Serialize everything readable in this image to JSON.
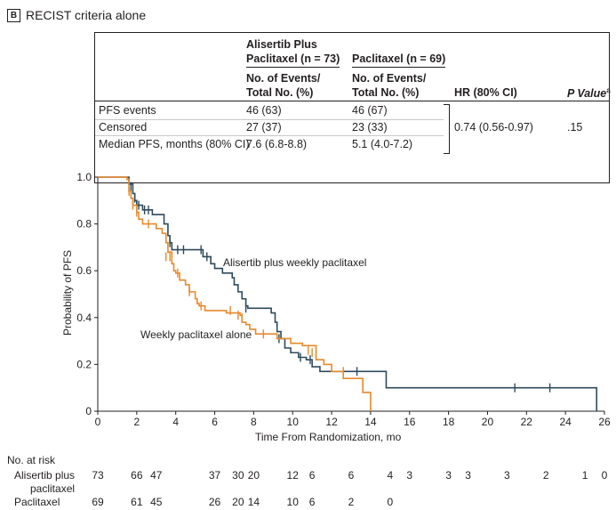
{
  "panel": {
    "letter": "B",
    "title": "RECIST criteria alone"
  },
  "table": {
    "group1_header_line1": "Alisertib Plus",
    "group1_header_line2": "Paclitaxel (n = 73)",
    "group2_header": "Paclitaxel (n = 69)",
    "sub_header_line1": "No. of Events/",
    "sub_header_line2": "Total No. (%)",
    "hr_header": "HR (80% CI)",
    "p_header": "P Value",
    "p_superscript": "a",
    "rows": [
      {
        "label": "PFS events",
        "g1": "46 (63)",
        "g2": "46 (67)"
      },
      {
        "label": "Censored",
        "g1": "27 (37)",
        "g2": "23 (33)"
      },
      {
        "label": "Median PFS, months (80% CI)",
        "g1": "7.6 (6.8-8.8)",
        "g2": "5.1 (4.0-7.2)"
      }
    ],
    "hr_value": "0.74 (0.56-0.97)",
    "p_value": ".15"
  },
  "chart_data": {
    "type": "line",
    "xlabel": "Time From Randomization, mo",
    "ylabel": "Probability of PFS",
    "xlim": [
      0,
      26
    ],
    "ylim": [
      0,
      1.0
    ],
    "xticks": [
      "0",
      "2",
      "4",
      "6",
      "8",
      "10",
      "12",
      "14",
      "16",
      "18",
      "20",
      "22",
      "24",
      "26"
    ],
    "yticks": [
      "0",
      "0.2",
      "0.4",
      "0.6",
      "0.8",
      "1.0"
    ],
    "series": [
      {
        "name": "Alisertib plus weekly paclitaxel",
        "color": "#2e4a5c",
        "steps": [
          [
            0,
            1.0
          ],
          [
            1.5,
            1.0
          ],
          [
            1.6,
            0.97
          ],
          [
            1.8,
            0.93
          ],
          [
            1.9,
            0.9
          ],
          [
            2.0,
            0.88
          ],
          [
            2.3,
            0.86
          ],
          [
            2.8,
            0.84
          ],
          [
            3.4,
            0.8
          ],
          [
            3.6,
            0.75
          ],
          [
            3.7,
            0.72
          ],
          [
            3.8,
            0.69
          ],
          [
            4.2,
            0.69
          ],
          [
            5.4,
            0.66
          ],
          [
            5.8,
            0.63
          ],
          [
            6.0,
            0.61
          ],
          [
            6.4,
            0.59
          ],
          [
            6.9,
            0.57
          ],
          [
            7.0,
            0.54
          ],
          [
            7.2,
            0.51
          ],
          [
            7.4,
            0.48
          ],
          [
            7.6,
            0.45
          ],
          [
            7.7,
            0.44
          ],
          [
            7.9,
            0.44
          ],
          [
            8.9,
            0.42
          ],
          [
            9.1,
            0.38
          ],
          [
            9.2,
            0.34
          ],
          [
            9.4,
            0.31
          ],
          [
            9.6,
            0.27
          ],
          [
            9.9,
            0.25
          ],
          [
            10.3,
            0.23
          ],
          [
            10.7,
            0.22
          ],
          [
            11.0,
            0.19
          ],
          [
            11.4,
            0.17
          ],
          [
            13.4,
            0.17
          ],
          [
            14.8,
            0.1
          ],
          [
            25.6,
            0.1
          ],
          [
            25.6,
            0
          ]
        ],
        "censor": [
          [
            1.7,
            0.96
          ],
          [
            1.9,
            0.91
          ],
          [
            2.1,
            0.88
          ],
          [
            2.4,
            0.86
          ],
          [
            2.6,
            0.86
          ],
          [
            3.7,
            0.72
          ],
          [
            4.1,
            0.69
          ],
          [
            4.4,
            0.69
          ],
          [
            5.3,
            0.69
          ],
          [
            5.6,
            0.66
          ],
          [
            7.6,
            0.44
          ],
          [
            9.3,
            0.31
          ],
          [
            10.4,
            0.23
          ],
          [
            10.9,
            0.22
          ],
          [
            13.3,
            0.17
          ],
          [
            21.4,
            0.1
          ],
          [
            23.2,
            0.1
          ]
        ]
      },
      {
        "name": "Weekly paclitaxel alone",
        "color": "#e8892a",
        "steps": [
          [
            0,
            1.0
          ],
          [
            1.5,
            0.99
          ],
          [
            1.6,
            0.94
          ],
          [
            1.7,
            0.91
          ],
          [
            1.8,
            0.88
          ],
          [
            2.0,
            0.85
          ],
          [
            2.1,
            0.82
          ],
          [
            2.3,
            0.8
          ],
          [
            2.8,
            0.8
          ],
          [
            3.0,
            0.78
          ],
          [
            3.3,
            0.76
          ],
          [
            3.5,
            0.72
          ],
          [
            3.6,
            0.68
          ],
          [
            3.8,
            0.63
          ],
          [
            3.9,
            0.6
          ],
          [
            4.0,
            0.59
          ],
          [
            4.2,
            0.56
          ],
          [
            4.5,
            0.54
          ],
          [
            4.7,
            0.51
          ],
          [
            5.0,
            0.48
          ],
          [
            5.1,
            0.46
          ],
          [
            5.2,
            0.45
          ],
          [
            5.4,
            0.45
          ],
          [
            5.5,
            0.43
          ],
          [
            6.4,
            0.43
          ],
          [
            6.6,
            0.42
          ],
          [
            7.3,
            0.41
          ],
          [
            7.4,
            0.38
          ],
          [
            7.6,
            0.37
          ],
          [
            7.8,
            0.35
          ],
          [
            8.1,
            0.33
          ],
          [
            8.8,
            0.33
          ],
          [
            9.2,
            0.31
          ],
          [
            9.9,
            0.29
          ],
          [
            10.5,
            0.28
          ],
          [
            11.2,
            0.22
          ],
          [
            11.6,
            0.2
          ],
          [
            12.0,
            0.17
          ],
          [
            12.5,
            0.17
          ],
          [
            12.6,
            0.14
          ],
          [
            13.6,
            0.08
          ],
          [
            14.0,
            0
          ],
          [
            14.0,
            0
          ]
        ],
        "censor": [
          [
            1.6,
            0.94
          ],
          [
            1.8,
            0.88
          ],
          [
            2.0,
            0.85
          ],
          [
            2.6,
            0.8
          ],
          [
            3.5,
            0.66
          ],
          [
            3.7,
            0.66
          ],
          [
            4.1,
            0.59
          ],
          [
            4.7,
            0.51
          ],
          [
            5.3,
            0.45
          ],
          [
            6.8,
            0.43
          ],
          [
            7.2,
            0.41
          ],
          [
            7.4,
            0.4
          ],
          [
            8.5,
            0.33
          ],
          [
            10.8,
            0.26
          ],
          [
            11.0,
            0.25
          ],
          [
            12.6,
            0.17
          ]
        ]
      }
    ],
    "annotations": [
      "Alisertib plus weekly paclitaxel",
      "Weekly paclitaxel alone"
    ]
  },
  "risk_table": {
    "title": "No. at risk",
    "rows": [
      {
        "label_line1": "Alisertib plus",
        "label_line2": "paclitaxel",
        "entries": [
          [
            "0",
            "73"
          ],
          [
            "2",
            "66"
          ],
          [
            "3",
            "47"
          ],
          [
            "6",
            "37"
          ],
          [
            "7.2",
            "30"
          ],
          [
            "8",
            "20"
          ],
          [
            "10",
            "12"
          ],
          [
            "11",
            "6"
          ],
          [
            "13",
            "6"
          ],
          [
            "15",
            "4"
          ],
          [
            "16",
            "3"
          ],
          [
            "18",
            "3"
          ],
          [
            "19",
            "3"
          ],
          [
            "21",
            "3"
          ],
          [
            "23",
            "2"
          ],
          [
            "25",
            "1"
          ],
          [
            "26",
            "0"
          ]
        ]
      },
      {
        "label_line1": "Paclitaxel",
        "label_line2": "",
        "entries": [
          [
            "0",
            "69"
          ],
          [
            "2",
            "61"
          ],
          [
            "3",
            "45"
          ],
          [
            "6",
            "26"
          ],
          [
            "7.2",
            "20"
          ],
          [
            "8",
            "14"
          ],
          [
            "10",
            "10"
          ],
          [
            "11",
            "6"
          ],
          [
            "13",
            "2"
          ],
          [
            "15",
            "0"
          ]
        ]
      }
    ]
  }
}
